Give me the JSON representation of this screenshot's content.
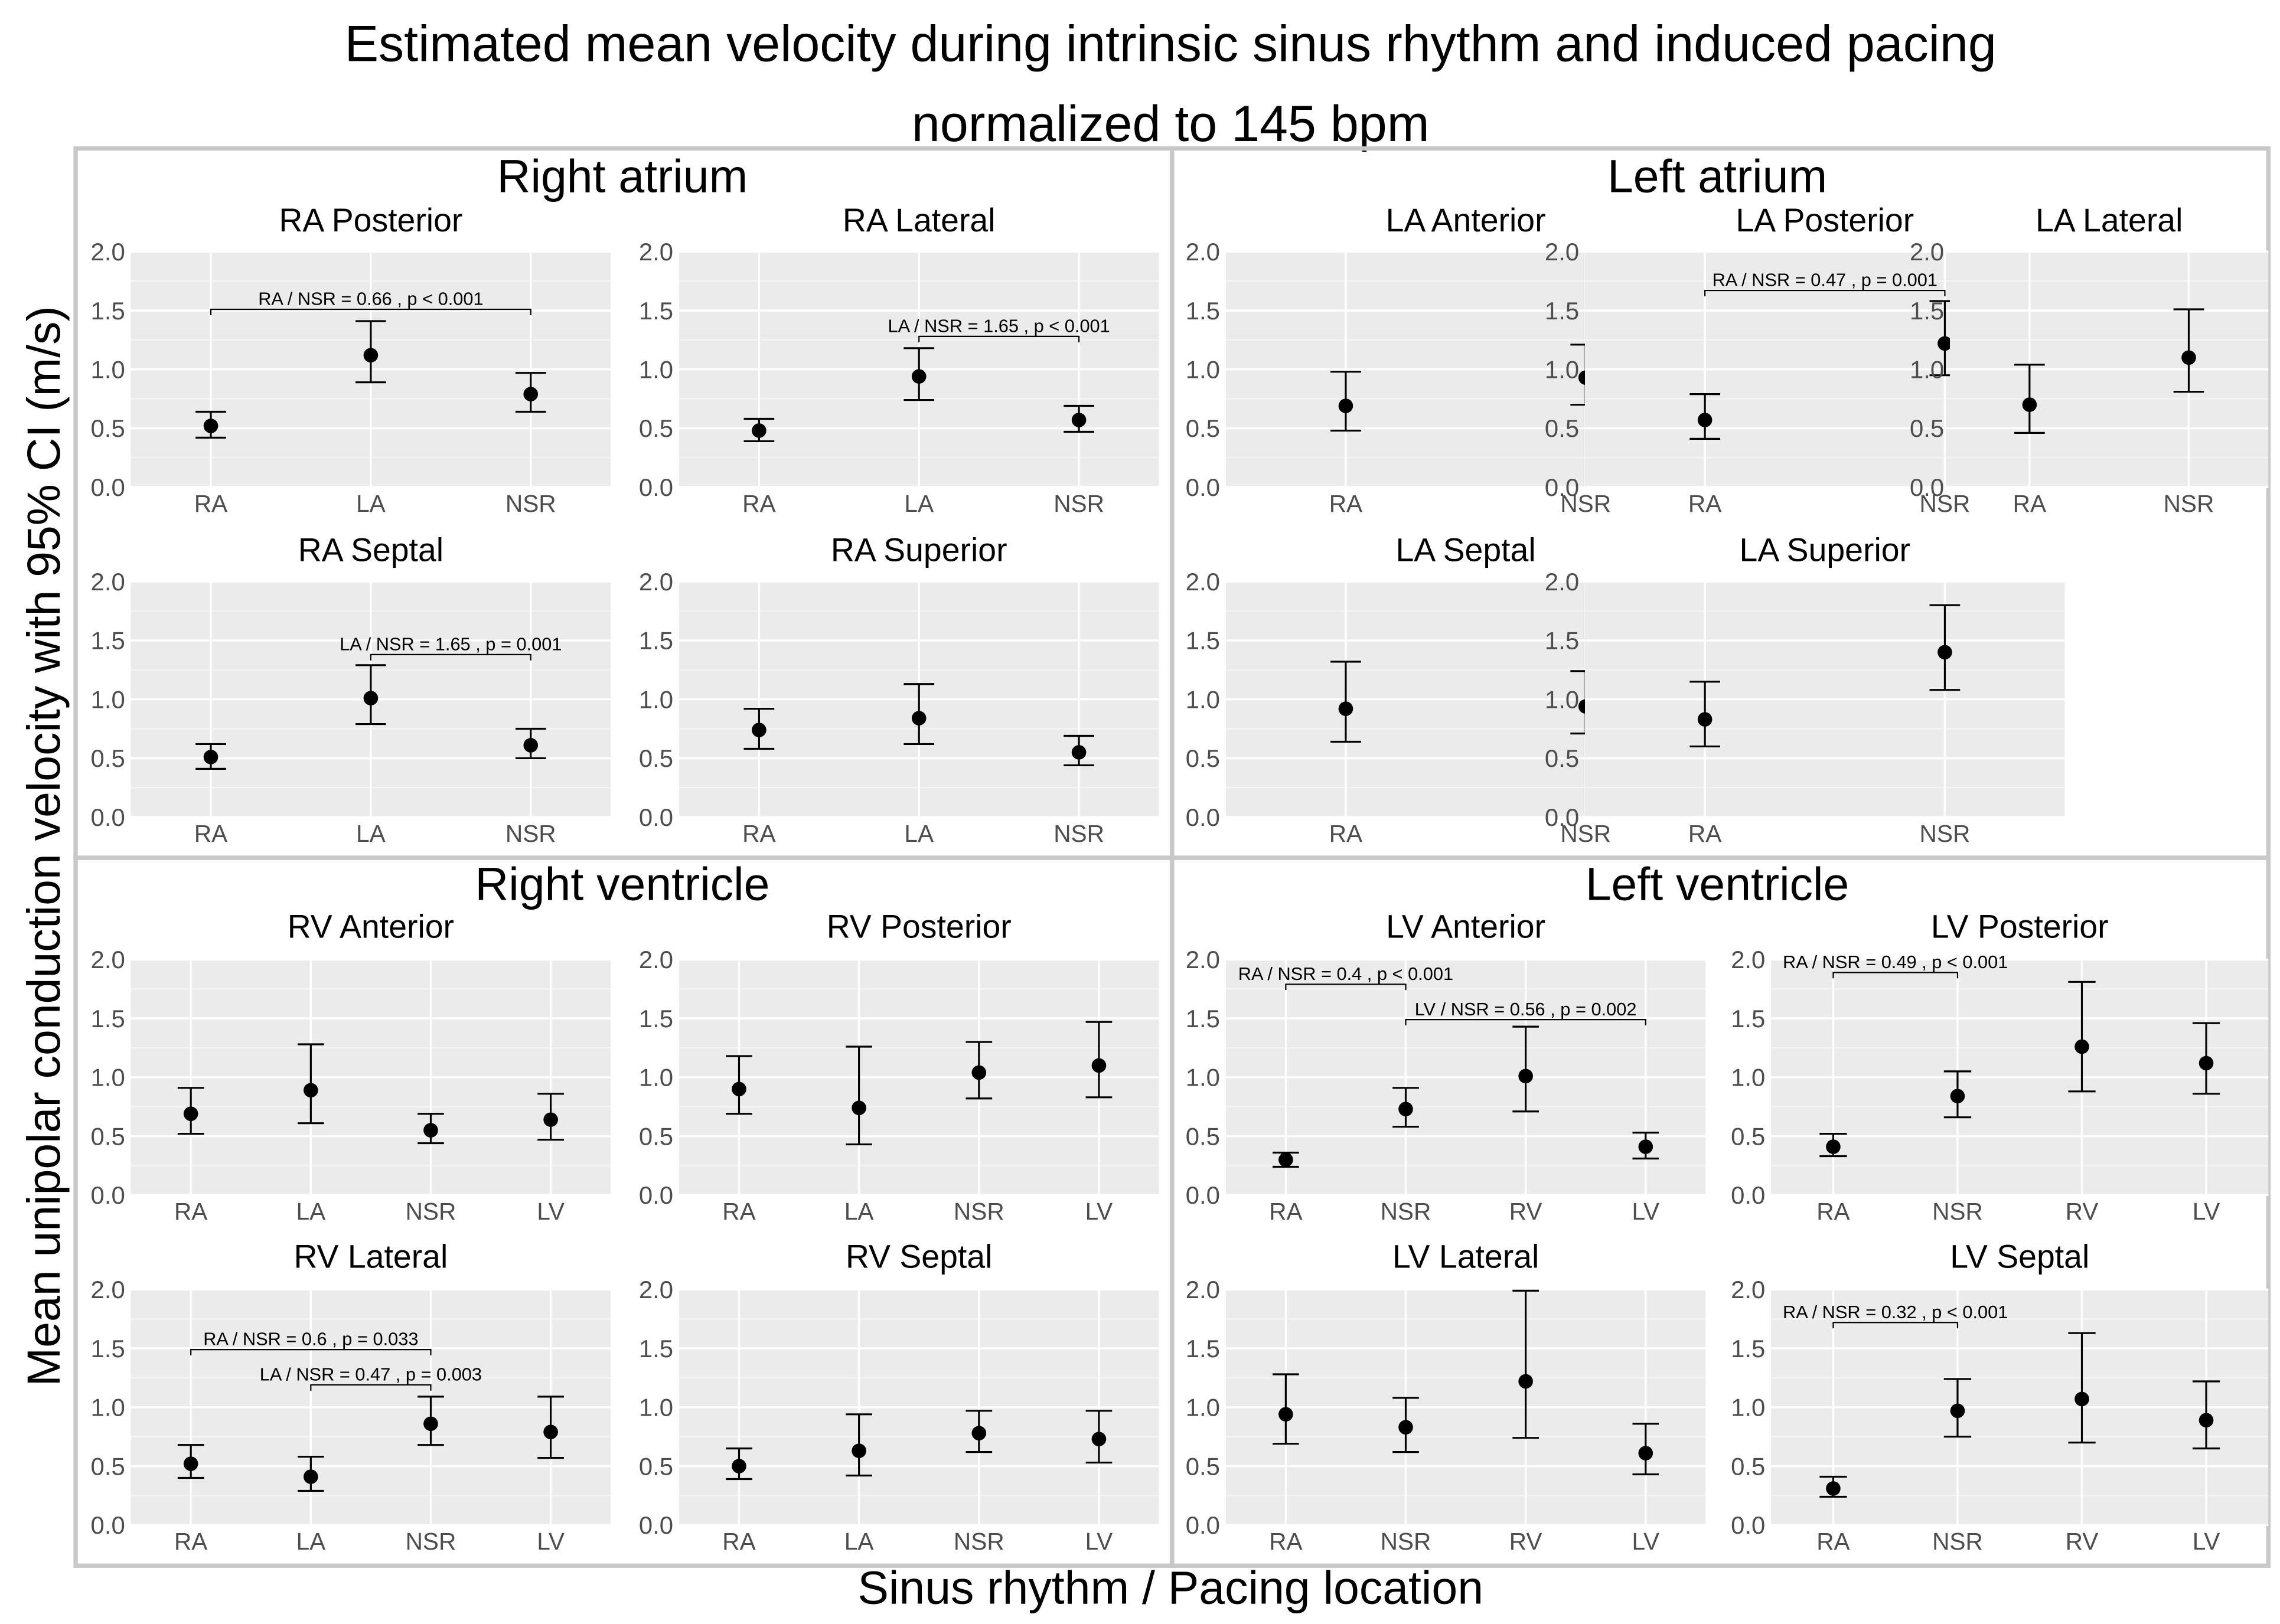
{
  "chart_data": {
    "type": "scatter",
    "title_lines": [
      "Estimated mean velocity during intrinsic sinus rhythm and induced pacing",
      "normalized to 145 bpm"
    ],
    "xlabel": "Sinus rhythm / Pacing location",
    "ylabel": "Mean unipolar conduction velocity with 95% CI (m/s)",
    "ylim": [
      0,
      2.0
    ],
    "yticks": [
      "0.0",
      "0.5",
      "1.0",
      "1.5",
      "2.0"
    ],
    "quadrants": [
      {
        "title": "Right atrium",
        "panels": [
          {
            "title": "RA Posterior",
            "categories": [
              "RA",
              "LA",
              "NSR"
            ],
            "mean": [
              0.52,
              1.12,
              0.79
            ],
            "lower": [
              0.42,
              0.89,
              0.64
            ],
            "upper": [
              0.64,
              1.41,
              0.97
            ],
            "annotations": [
              {
                "text": "RA / NSR = 0.66 , p < 0.001",
                "from": 0,
                "to": 2,
                "y": 1.51
              }
            ]
          },
          {
            "title": "RA Lateral",
            "categories": [
              "RA",
              "LA",
              "NSR"
            ],
            "mean": [
              0.48,
              0.94,
              0.57
            ],
            "lower": [
              0.39,
              0.74,
              0.47
            ],
            "upper": [
              0.58,
              1.18,
              0.69
            ],
            "annotations": [
              {
                "text": "LA / NSR = 1.65 , p < 0.001",
                "from": 1,
                "to": 2,
                "y": 1.28
              }
            ]
          },
          {
            "title": "RA Septal",
            "categories": [
              "RA",
              "LA",
              "NSR"
            ],
            "mean": [
              0.51,
              1.01,
              0.61
            ],
            "lower": [
              0.41,
              0.79,
              0.5
            ],
            "upper": [
              0.62,
              1.29,
              0.75
            ],
            "annotations": [
              {
                "text": "LA / NSR = 1.65 , p = 0.001",
                "from": 1,
                "to": 2,
                "y": 1.38
              }
            ]
          },
          {
            "title": "RA Superior",
            "categories": [
              "RA",
              "LA",
              "NSR"
            ],
            "mean": [
              0.74,
              0.84,
              0.55
            ],
            "lower": [
              0.58,
              0.62,
              0.44
            ],
            "upper": [
              0.92,
              1.13,
              0.69
            ],
            "annotations": []
          }
        ]
      },
      {
        "title": "Left atrium",
        "panels": [
          {
            "title": "LA Anterior",
            "categories": [
              "RA",
              "NSR"
            ],
            "mean": [
              0.69,
              0.93
            ],
            "lower": [
              0.48,
              0.7
            ],
            "upper": [
              0.98,
              1.21
            ],
            "annotations": []
          },
          {
            "title": "LA Posterior",
            "categories": [
              "RA",
              "NSR"
            ],
            "mean": [
              0.57,
              1.22
            ],
            "lower": [
              0.41,
              0.95
            ],
            "upper": [
              0.79,
              1.58
            ],
            "annotations": [
              {
                "text": "RA / NSR = 0.47 , p = 0.001",
                "from": 0,
                "to": 1,
                "y": 1.67
              }
            ]
          },
          {
            "title": "LA Lateral",
            "categories": [
              "RA",
              "NSR"
            ],
            "mean": [
              0.7,
              1.1
            ],
            "lower": [
              0.46,
              0.81
            ],
            "upper": [
              1.04,
              1.51
            ],
            "annotations": []
          },
          {
            "title": "LA Septal",
            "categories": [
              "RA",
              "NSR"
            ],
            "mean": [
              0.92,
              0.94
            ],
            "lower": [
              0.64,
              0.71
            ],
            "upper": [
              1.32,
              1.24
            ],
            "annotations": []
          },
          {
            "title": "LA Superior",
            "categories": [
              "RA",
              "NSR"
            ],
            "mean": [
              0.83,
              1.4
            ],
            "lower": [
              0.6,
              1.08
            ],
            "upper": [
              1.15,
              1.8
            ],
            "annotations": []
          }
        ]
      },
      {
        "title": "Right ventricle",
        "panels": [
          {
            "title": "RV Anterior",
            "categories": [
              "RA",
              "LA",
              "NSR",
              "LV"
            ],
            "mean": [
              0.69,
              0.89,
              0.55,
              0.64
            ],
            "lower": [
              0.52,
              0.61,
              0.44,
              0.47
            ],
            "upper": [
              0.91,
              1.28,
              0.69,
              0.86
            ],
            "annotations": []
          },
          {
            "title": "RV Posterior",
            "categories": [
              "RA",
              "LA",
              "NSR",
              "LV"
            ],
            "mean": [
              0.9,
              0.74,
              1.04,
              1.1
            ],
            "lower": [
              0.69,
              0.43,
              0.82,
              0.83
            ],
            "upper": [
              1.18,
              1.26,
              1.3,
              1.47
            ],
            "annotations": []
          },
          {
            "title": "RV Lateral",
            "categories": [
              "RA",
              "LA",
              "NSR",
              "LV"
            ],
            "mean": [
              0.52,
              0.41,
              0.86,
              0.79
            ],
            "lower": [
              0.4,
              0.29,
              0.68,
              0.57
            ],
            "upper": [
              0.68,
              0.58,
              1.09,
              1.09
            ],
            "annotations": [
              {
                "text": "RA / NSR = 0.6 , p = 0.033",
                "from": 0,
                "to": 2,
                "y": 1.49
              },
              {
                "text": "LA / NSR = 0.47 , p = 0.003",
                "from": 1,
                "to": 2,
                "y": 1.19
              }
            ]
          },
          {
            "title": "RV Septal",
            "categories": [
              "RA",
              "LA",
              "NSR",
              "LV"
            ],
            "mean": [
              0.5,
              0.63,
              0.78,
              0.73
            ],
            "lower": [
              0.39,
              0.42,
              0.62,
              0.53
            ],
            "upper": [
              0.65,
              0.94,
              0.97,
              0.97
            ],
            "annotations": []
          }
        ]
      },
      {
        "title": "Left ventricle",
        "panels": [
          {
            "title": "LV Anterior",
            "categories": [
              "RA",
              "NSR",
              "RV",
              "LV"
            ],
            "mean": [
              0.3,
              0.73,
              1.01,
              0.41
            ],
            "lower": [
              0.24,
              0.58,
              0.71,
              0.31
            ],
            "upper": [
              0.36,
              0.91,
              1.43,
              0.53
            ],
            "annotations": [
              {
                "text": "RA / NSR = 0.4 , p < 0.001",
                "from": 0,
                "to": 1,
                "y": 1.79
              },
              {
                "text": "LV / NSR = 0.56 , p = 0.002",
                "from": 1,
                "to": 3,
                "y": 1.49
              }
            ]
          },
          {
            "title": "LV Posterior",
            "categories": [
              "RA",
              "NSR",
              "RV",
              "LV"
            ],
            "mean": [
              0.41,
              0.84,
              1.26,
              1.12
            ],
            "lower": [
              0.33,
              0.66,
              0.88,
              0.86
            ],
            "upper": [
              0.52,
              1.05,
              1.81,
              1.46
            ],
            "annotations": [
              {
                "text": "RA / NSR = 0.49 , p < 0.001",
                "from": 0,
                "to": 1,
                "y": 1.89
              }
            ]
          },
          {
            "title": "LV Lateral",
            "categories": [
              "RA",
              "NSR",
              "RV",
              "LV"
            ],
            "mean": [
              0.94,
              0.83,
              1.22,
              0.61
            ],
            "lower": [
              0.69,
              0.62,
              0.74,
              0.43
            ],
            "upper": [
              1.28,
              1.08,
              1.99,
              0.86
            ],
            "annotations": []
          },
          {
            "title": "LV Septal",
            "categories": [
              "RA",
              "NSR",
              "RV",
              "LV"
            ],
            "mean": [
              0.31,
              0.97,
              1.07,
              0.89
            ],
            "lower": [
              0.24,
              0.75,
              0.7,
              0.65
            ],
            "upper": [
              0.41,
              1.24,
              1.63,
              1.22
            ],
            "annotations": [
              {
                "text": "RA / NSR = 0.32 , p < 0.001",
                "from": 0,
                "to": 1,
                "y": 1.72
              }
            ]
          }
        ]
      }
    ]
  }
}
